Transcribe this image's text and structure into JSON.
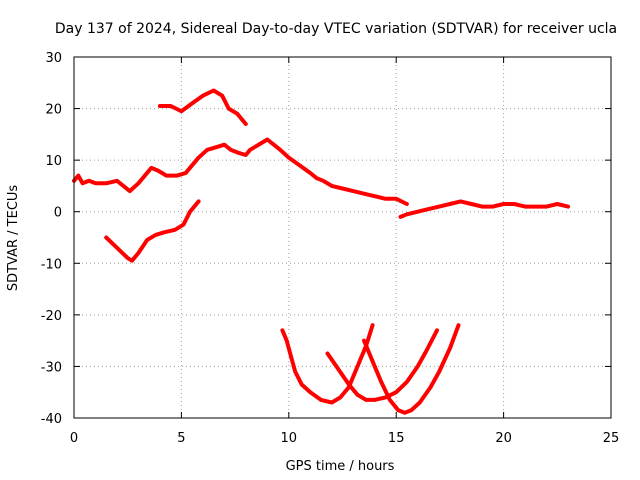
{
  "chart_data": {
    "type": "line",
    "title": "Day 137 of 2024, Sidereal Day-to-day VTEC variation (SDTVAR) for receiver ucla",
    "xlabel": "GPS time / hours",
    "ylabel": "SDTVAR / TECUs",
    "xlim": [
      0,
      25
    ],
    "ylim": [
      -40,
      30
    ],
    "x_ticks": [
      0,
      5,
      10,
      15,
      20,
      25
    ],
    "y_ticks": [
      -40,
      -30,
      -20,
      -10,
      0,
      10,
      20,
      30
    ],
    "x_tick_labels": [
      "0",
      "5",
      "10",
      "15",
      "20",
      "25"
    ],
    "y_tick_labels": [
      "-40",
      "-30",
      "-20",
      "-10",
      "0",
      "10",
      "20",
      "30"
    ],
    "grid": true,
    "series_color": "#ff0000",
    "series": [
      {
        "name": "s1",
        "x": [
          0,
          0.2,
          0.4,
          0.7,
          1.0,
          1.5,
          2.0,
          2.3,
          2.6,
          3.0,
          3.3,
          3.6,
          3.9,
          4.3,
          4.8,
          5.2,
          5.5,
          5.8,
          6.2,
          6.6,
          7.0,
          7.3,
          7.6,
          8.0,
          8.2,
          8.6,
          9.0,
          9.3,
          9.6,
          10.0,
          10.5,
          11.0,
          11.3,
          11.6,
          12.0,
          12.5,
          13.0,
          13.5,
          14.0,
          14.5,
          15.0,
          15.5
        ],
        "y": [
          6,
          7,
          5.5,
          6,
          5.5,
          5.5,
          6,
          5,
          4,
          5.5,
          7,
          8.5,
          8,
          7,
          7,
          7.5,
          9,
          10.5,
          12,
          12.5,
          13,
          12,
          11.5,
          11,
          12,
          13,
          14,
          13,
          12,
          10.5,
          9,
          7.5,
          6.5,
          6,
          5,
          4.5,
          4,
          3.5,
          3,
          2.5,
          2.5,
          1.5
        ]
      },
      {
        "name": "s2",
        "x": [
          15.2,
          15.5,
          16.0,
          16.5,
          17.0,
          17.5,
          18.0,
          18.5,
          19.0,
          19.5,
          20.0,
          20.5,
          21.0,
          21.5,
          22.0,
          22.5,
          23.0
        ],
        "y": [
          -1,
          -0.5,
          0,
          0.5,
          1,
          1.5,
          2,
          1.5,
          1,
          1,
          1.5,
          1.5,
          1,
          1,
          1,
          1.5,
          1
        ]
      },
      {
        "name": "s3",
        "x": [
          4.0,
          4.5,
          5.0,
          5.5,
          6.0,
          6.5,
          6.9,
          7.2,
          7.6,
          8.0
        ],
        "y": [
          20.5,
          20.5,
          19.5,
          21,
          22.5,
          23.5,
          22.5,
          20,
          19,
          17
        ]
      },
      {
        "name": "s4",
        "x": [
          1.5,
          2.0,
          2.5,
          2.7,
          3.0,
          3.4,
          3.8,
          4.2,
          4.7,
          5.1,
          5.4,
          5.8
        ],
        "y": [
          -5,
          -7,
          -9,
          -9.5,
          -8,
          -5.5,
          -4.5,
          -4,
          -3.5,
          -2.5,
          0,
          2
        ]
      },
      {
        "name": "s5",
        "x": [
          9.7,
          9.9,
          10.1,
          10.3,
          10.6,
          11.0,
          11.5,
          12.0,
          12.4,
          12.8,
          13.2,
          13.6,
          13.9
        ],
        "y": [
          -23,
          -25,
          -28,
          -31,
          -33.5,
          -35,
          -36.5,
          -37,
          -36,
          -34,
          -30,
          -26,
          -22
        ]
      },
      {
        "name": "s6",
        "x": [
          11.8,
          12.3,
          12.8,
          13.2,
          13.6,
          14.0,
          14.5,
          15.0,
          15.5,
          16.0,
          16.4,
          16.9
        ],
        "y": [
          -27.5,
          -30.5,
          -33.5,
          -35.5,
          -36.5,
          -36.5,
          -36,
          -35,
          -33,
          -30,
          -27,
          -23
        ]
      },
      {
        "name": "s7",
        "x": [
          13.5,
          13.9,
          14.3,
          14.7,
          15.1,
          15.4,
          15.7,
          16.1,
          16.6,
          17.0,
          17.5,
          17.9
        ],
        "y": [
          -25,
          -29,
          -33,
          -36.5,
          -38.5,
          -39,
          -38.5,
          -37,
          -34,
          -31,
          -26.5,
          -22
        ]
      }
    ]
  }
}
